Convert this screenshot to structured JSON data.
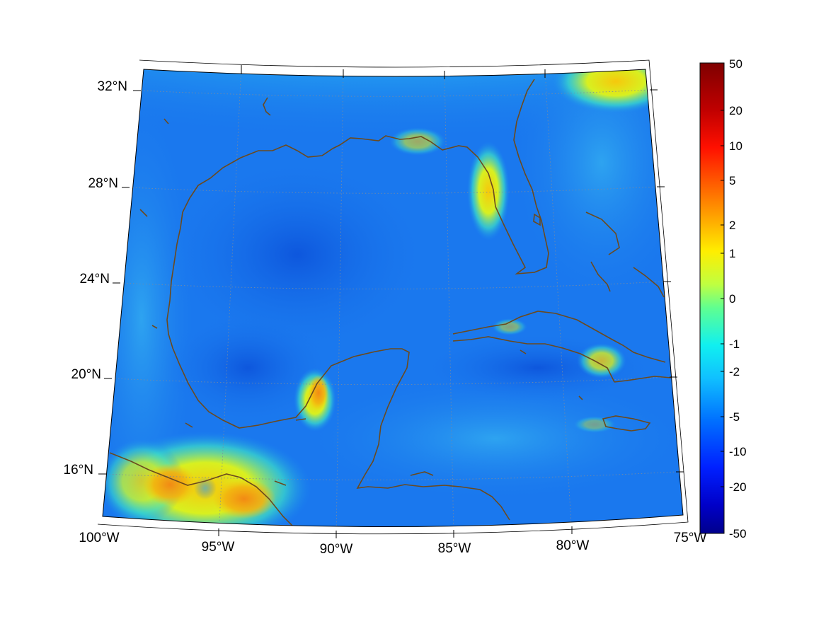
{
  "map": {
    "lon_labels": [
      "100°W",
      "95°W",
      "90°W",
      "85°W",
      "80°W",
      "75°W"
    ],
    "lat_labels": [
      "16°N",
      "20°N",
      "24°N",
      "28°N",
      "32°N"
    ],
    "colorbar": {
      "labels": [
        "50",
        "20",
        "10",
        "5",
        "2",
        "1",
        "0",
        "-1",
        "-2",
        "-5",
        "-10",
        "-20",
        "-50"
      ],
      "colors": [
        "#7f0000",
        "#ff0000",
        "#ff8000",
        "#ffd000",
        "#ffff00",
        "#80ff80",
        "#00ffff",
        "#00c0ff",
        "#0080ff",
        "#0040ff",
        "#0000c0",
        "#00008f"
      ]
    },
    "colors": {
      "ocean_base": "#1a78ee",
      "deep_gulf": "#0e5ee0",
      "coastline": "#6b4a1e",
      "grid": "#7a8ba0"
    }
  }
}
